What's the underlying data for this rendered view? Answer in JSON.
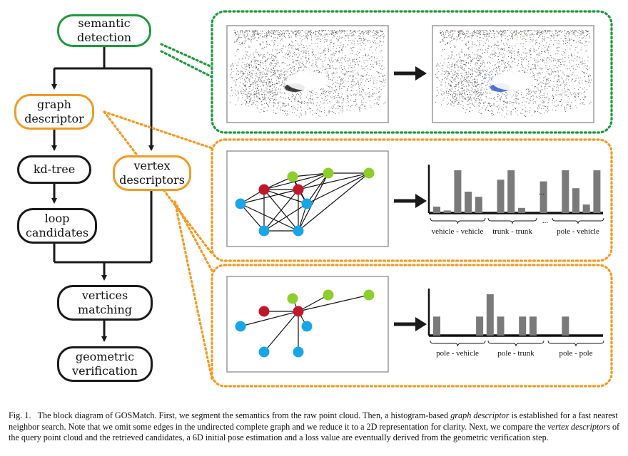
{
  "nodes": {
    "semantic_detection": "semantic\ndetection",
    "graph_descriptor": "graph\ndescriptor",
    "kd_tree": "kd-tree",
    "vertex_descriptors": "vertex\ndescriptors",
    "loop_candidates": "loop\ncandidates",
    "vertices_matching": "vertices\nmatching",
    "geometric_verification": "geometric\nverification"
  },
  "histograms": {
    "graph": {
      "values": [
        0.15,
        0.06,
        1.0,
        0.5,
        0.38,
        0.78,
        1.0,
        0.12,
        0.74,
        1.0,
        0.58,
        0.2,
        1.0
      ],
      "ellipsis": "...",
      "groups": [
        "vehicle - vehicle",
        "trunk - trunk",
        "...",
        "pole - vehicle"
      ]
    },
    "vertex": {
      "values": [
        0.46,
        0,
        0,
        0.46,
        1.0,
        0.46,
        0.46,
        0.46,
        0,
        0.46
      ],
      "groups": [
        "pole - vehicle",
        "pole - trunk",
        "pole - pole"
      ]
    }
  },
  "caption": {
    "prefix": "Fig. 1.",
    "part1": "The block diagram of GOSMatch. First, we segment the semantics from the raw point cloud. Then, a histogram-based ",
    "term1": "graph descriptor",
    "part2": " is established for a fast nearest neighbor search. Note that we omit some edges in the undirected complete graph and we reduce it to a 2D representation for clarity. Next, we compare the ",
    "term2": "vertex descriptors",
    "part3": " of the query point cloud and the retrieved candidates, a 6D initial pose estimation and a loss value are eventually derived from the geometric verification step."
  },
  "colors": {
    "green_box": "#1e9a3c",
    "orange_box": "#f29a23",
    "vehicle_node": "#c0182a",
    "trunk_node": "#8ccf2a",
    "pole_node": "#18a6e8",
    "bar": "#7a7a7a"
  }
}
